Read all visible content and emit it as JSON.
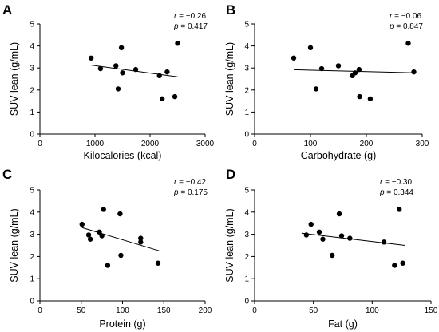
{
  "chart_data": [
    {
      "type": "scatter",
      "panel": "A",
      "xlabel": "Kilocalories (kcal)",
      "ylabel": "SUV lean (g/mL)",
      "xlim": [
        0,
        3000
      ],
      "ylim": [
        0,
        5
      ],
      "xticks": [
        0,
        1000,
        2000,
        3000
      ],
      "yticks": [
        0,
        1,
        2,
        3,
        4,
        5
      ],
      "r_text": "= −0.26",
      "p_text": "= 0.417",
      "points": [
        {
          "x": 930,
          "y": 3.45
        },
        {
          "x": 1100,
          "y": 2.97
        },
        {
          "x": 1380,
          "y": 3.1
        },
        {
          "x": 1420,
          "y": 2.05
        },
        {
          "x": 1480,
          "y": 3.92
        },
        {
          "x": 1500,
          "y": 2.78
        },
        {
          "x": 1740,
          "y": 2.93
        },
        {
          "x": 2170,
          "y": 2.65
        },
        {
          "x": 2220,
          "y": 1.6
        },
        {
          "x": 2310,
          "y": 2.82
        },
        {
          "x": 2450,
          "y": 1.7
        },
        {
          "x": 2500,
          "y": 4.12
        }
      ],
      "fit": {
        "x": [
          930,
          2500
        ],
        "y": [
          3.13,
          2.6
        ]
      }
    },
    {
      "type": "scatter",
      "panel": "B",
      "xlabel": "Carbohydrate (g)",
      "ylabel": "SUV lean (g/mL)",
      "xlim": [
        0,
        300
      ],
      "ylim": [
        0,
        5
      ],
      "xticks": [
        0,
        100,
        200,
        300
      ],
      "yticks": [
        0,
        1,
        2,
        3,
        4,
        5
      ],
      "r_text": "= −0.06",
      "p_text": "= 0.847",
      "points": [
        {
          "x": 70,
          "y": 3.45
        },
        {
          "x": 100,
          "y": 3.92
        },
        {
          "x": 110,
          "y": 2.05
        },
        {
          "x": 120,
          "y": 2.97
        },
        {
          "x": 150,
          "y": 3.1
        },
        {
          "x": 175,
          "y": 2.65
        },
        {
          "x": 180,
          "y": 2.78
        },
        {
          "x": 187,
          "y": 2.93
        },
        {
          "x": 188,
          "y": 1.7
        },
        {
          "x": 207,
          "y": 1.6
        },
        {
          "x": 275,
          "y": 4.12
        },
        {
          "x": 285,
          "y": 2.82
        }
      ],
      "fit": {
        "x": [
          70,
          285
        ],
        "y": [
          2.92,
          2.78
        ]
      }
    },
    {
      "type": "scatter",
      "panel": "C",
      "xlabel": "Protein (g)",
      "ylabel": "SUV lean (g/mL)",
      "xlim": [
        0,
        200
      ],
      "ylim": [
        0,
        5
      ],
      "xticks": [
        0,
        50,
        100,
        150,
        200
      ],
      "yticks": [
        0,
        1,
        2,
        3,
        4,
        5
      ],
      "r_text": "= −0.42",
      "p_text": "= 0.175",
      "points": [
        {
          "x": 51,
          "y": 3.45
        },
        {
          "x": 59,
          "y": 2.97
        },
        {
          "x": 61,
          "y": 2.78
        },
        {
          "x": 72,
          "y": 3.1
        },
        {
          "x": 75,
          "y": 2.93
        },
        {
          "x": 77,
          "y": 4.12
        },
        {
          "x": 82,
          "y": 1.6
        },
        {
          "x": 97,
          "y": 3.92
        },
        {
          "x": 98,
          "y": 2.05
        },
        {
          "x": 122,
          "y": 2.82
        },
        {
          "x": 122,
          "y": 2.65
        },
        {
          "x": 143,
          "y": 1.7
        }
      ],
      "fit": {
        "x": [
          51,
          145
        ],
        "y": [
          3.3,
          2.25
        ]
      }
    },
    {
      "type": "scatter",
      "panel": "D",
      "xlabel": "Fat (g)",
      "ylabel": "SUV lean (g/mL)",
      "xlim": [
        0,
        150
      ],
      "ylim": [
        0,
        5
      ],
      "xticks": [
        0,
        50,
        100,
        150
      ],
      "yticks": [
        0,
        1,
        2,
        3,
        4,
        5
      ],
      "r_text": "= −0.30",
      "p_text": "= 0.344",
      "points": [
        {
          "x": 44,
          "y": 2.97
        },
        {
          "x": 48,
          "y": 3.45
        },
        {
          "x": 55,
          "y": 3.1
        },
        {
          "x": 58,
          "y": 2.78
        },
        {
          "x": 66,
          "y": 2.05
        },
        {
          "x": 72,
          "y": 3.92
        },
        {
          "x": 74,
          "y": 2.93
        },
        {
          "x": 81,
          "y": 2.82
        },
        {
          "x": 110,
          "y": 2.65
        },
        {
          "x": 119,
          "y": 1.6
        },
        {
          "x": 123,
          "y": 4.12
        },
        {
          "x": 126,
          "y": 1.7
        }
      ],
      "fit": {
        "x": [
          40,
          128
        ],
        "y": [
          3.05,
          2.5
        ]
      }
    }
  ]
}
